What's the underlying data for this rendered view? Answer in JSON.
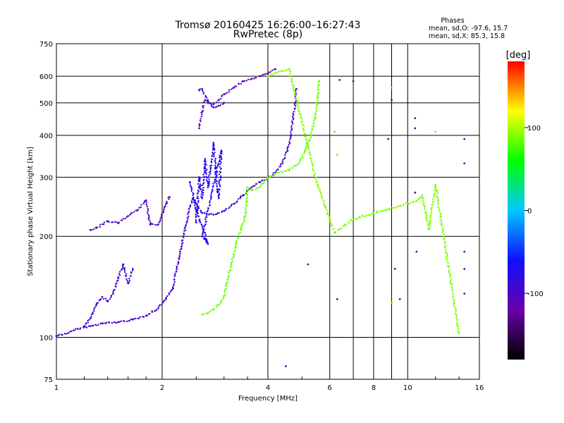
{
  "header": {
    "title_line1": "Tromsø 20160425 16:26:00–16:27:43",
    "title_line2": "RwPretec (8p)"
  },
  "phase_info": {
    "heading": "Phases",
    "line_o": "mean, sd,O: -97.6, 15.7",
    "line_x": "mean, sd,X:  85.3, 15.8"
  },
  "colorbar": {
    "title": "[deg]",
    "ticks": [
      {
        "value": 100,
        "label": "100"
      },
      {
        "value": 0,
        "label": "0"
      },
      {
        "value": -100,
        "label": "-100"
      }
    ],
    "range": [
      -180,
      180
    ],
    "colormap": [
      "#000000",
      "#6a00a8",
      "#1010ff",
      "#00c8ff",
      "#00ff00",
      "#ffff00",
      "#ff0000"
    ]
  },
  "chart_data": {
    "type": "scatter",
    "title": "Tromsø 20160425 16:26:00–16:27:43",
    "subtitle": "RwPretec (8p)",
    "xlabel": "Frequency [MHz]",
    "ylabel": "Stationary phase Virtual Height [km]",
    "xscale": "log",
    "yscale": "log",
    "xlim": [
      1,
      16
    ],
    "ylim": [
      75,
      750
    ],
    "xticks": [
      {
        "value": 1,
        "label": "1"
      },
      {
        "value": 2,
        "label": "2"
      },
      {
        "value": 4,
        "label": "4"
      },
      {
        "value": 6,
        "label": "6"
      },
      {
        "value": 8,
        "label": "8"
      },
      {
        "value": 10,
        "label": "10"
      },
      {
        "value": 16,
        "label": "16"
      }
    ],
    "xgrid": [
      2,
      4,
      6,
      7,
      8,
      9,
      10
    ],
    "yticks": [
      {
        "value": 75,
        "label": "75"
      },
      {
        "value": 100,
        "label": "100"
      },
      {
        "value": 200,
        "label": "200"
      },
      {
        "value": 300,
        "label": "300"
      },
      {
        "value": 400,
        "label": "400"
      },
      {
        "value": 500,
        "label": "500"
      },
      {
        "value": 600,
        "label": "600"
      },
      {
        "value": 750,
        "label": "750"
      }
    ],
    "ygrid": [
      100,
      200,
      300,
      400,
      500,
      600
    ],
    "grid": true,
    "color_by": "phase [deg]",
    "series": [
      {
        "phase": -95,
        "points": [
          [
            1.0,
            101
          ],
          [
            1.08,
            103
          ],
          [
            1.15,
            106
          ],
          [
            1.25,
            108
          ],
          [
            1.35,
            110
          ],
          [
            1.5,
            111
          ],
          [
            1.65,
            113
          ],
          [
            1.8,
            116
          ],
          [
            1.95,
            122
          ],
          [
            2.05,
            130
          ],
          [
            2.15,
            140
          ],
          [
            2.2,
            160
          ],
          [
            2.25,
            180
          ],
          [
            2.3,
            200
          ],
          [
            2.35,
            220
          ],
          [
            2.4,
            245
          ],
          [
            2.45,
            260
          ],
          [
            2.5,
            250
          ],
          [
            2.6,
            235
          ],
          [
            2.8,
            232
          ],
          [
            3.0,
            238
          ],
          [
            3.2,
            250
          ],
          [
            3.4,
            265
          ],
          [
            3.6,
            280
          ],
          [
            3.8,
            290
          ],
          [
            4.0,
            298
          ],
          [
            4.2,
            310
          ],
          [
            4.4,
            330
          ],
          [
            4.55,
            360
          ],
          [
            4.65,
            400
          ],
          [
            4.72,
            450
          ],
          [
            4.78,
            500
          ],
          [
            4.82,
            550
          ]
        ]
      },
      {
        "phase": -110,
        "points": [
          [
            2.55,
            420
          ],
          [
            2.6,
            470
          ],
          [
            2.65,
            510
          ],
          [
            2.7,
            500
          ],
          [
            2.8,
            495
          ],
          [
            2.9,
            510
          ],
          [
            3.0,
            530
          ],
          [
            3.2,
            555
          ],
          [
            3.4,
            580
          ],
          [
            3.6,
            590
          ],
          [
            3.8,
            600
          ],
          [
            4.0,
            610
          ],
          [
            4.2,
            630
          ]
        ]
      },
      {
        "phase": -85,
        "points": [
          [
            2.55,
            545
          ],
          [
            2.6,
            550
          ],
          [
            2.7,
            505
          ],
          [
            2.8,
            485
          ],
          [
            2.9,
            490
          ],
          [
            3.0,
            500
          ]
        ]
      },
      {
        "phase": -100,
        "points": [
          [
            1.25,
            209
          ],
          [
            1.3,
            212
          ],
          [
            1.4,
            222
          ],
          [
            1.5,
            219
          ],
          [
            1.6,
            230
          ],
          [
            1.7,
            239
          ],
          [
            1.8,
            256
          ],
          [
            1.85,
            217
          ],
          [
            1.95,
            217
          ],
          [
            2.05,
            250
          ],
          [
            2.1,
            262
          ]
        ]
      },
      {
        "phase": -90,
        "points": [
          [
            1.2,
            108
          ],
          [
            1.25,
            114
          ],
          [
            1.3,
            125
          ],
          [
            1.35,
            132
          ],
          [
            1.4,
            128
          ],
          [
            1.45,
            135
          ],
          [
            1.5,
            150
          ],
          [
            1.55,
            165
          ],
          [
            1.6,
            145
          ],
          [
            1.65,
            160
          ]
        ]
      },
      {
        "phase": -75,
        "points": [
          [
            2.5,
            220
          ],
          [
            2.55,
            300
          ],
          [
            2.6,
            260
          ],
          [
            2.65,
            340
          ],
          [
            2.7,
            280
          ],
          [
            2.75,
            320
          ],
          [
            2.8,
            380
          ],
          [
            2.85,
            300
          ],
          [
            2.9,
            260
          ],
          [
            2.95,
            360
          ],
          [
            2.6,
            200
          ],
          [
            2.7,
            190
          ],
          [
            2.5,
            240
          ],
          [
            2.4,
            290
          ]
        ]
      },
      {
        "phase": 85,
        "points": [
          [
            2.6,
            117
          ],
          [
            2.7,
            118
          ],
          [
            2.8,
            121
          ],
          [
            2.9,
            125
          ],
          [
            3.0,
            133
          ],
          [
            3.05,
            145
          ],
          [
            3.15,
            165
          ],
          [
            3.25,
            190
          ],
          [
            3.35,
            210
          ],
          [
            3.45,
            230
          ],
          [
            3.5,
            280
          ],
          [
            3.6,
            275
          ],
          [
            3.8,
            280
          ],
          [
            4.0,
            300
          ],
          [
            4.3,
            310
          ],
          [
            4.6,
            315
          ],
          [
            4.9,
            330
          ],
          [
            5.1,
            360
          ],
          [
            5.3,
            400
          ],
          [
            5.45,
            450
          ],
          [
            5.55,
            520
          ],
          [
            5.6,
            580
          ]
        ]
      },
      {
        "phase": 90,
        "points": [
          [
            4.0,
            600
          ],
          [
            4.3,
            620
          ],
          [
            4.6,
            630
          ],
          [
            5.2,
            370
          ],
          [
            5.5,
            290
          ],
          [
            6.2,
            205
          ],
          [
            7.0,
            225
          ],
          [
            10.6,
            255
          ],
          [
            11.0,
            265
          ],
          [
            11.5,
            210
          ],
          [
            12.0,
            285
          ],
          [
            14.0,
            103
          ]
        ]
      },
      {
        "phase": 140,
        "points": [
          [
            6.2,
            410
          ],
          [
            6.3,
            350
          ],
          [
            9.0,
            555
          ],
          [
            12.0,
            410
          ],
          [
            9.0,
            127
          ]
        ]
      },
      {
        "phase": -110,
        "points": [
          [
            4.5,
            82
          ],
          [
            5.2,
            165
          ],
          [
            6.3,
            130
          ],
          [
            8.8,
            390
          ],
          [
            9.0,
            510
          ],
          [
            9.2,
            160
          ],
          [
            9.5,
            130
          ],
          [
            10.5,
            450
          ],
          [
            10.5,
            420
          ],
          [
            10.5,
            270
          ],
          [
            10.6,
            180
          ],
          [
            14.5,
            390
          ],
          [
            14.5,
            330
          ],
          [
            14.5,
            180
          ],
          [
            14.5,
            160
          ],
          [
            14.5,
            135
          ],
          [
            7.0,
            580
          ],
          [
            6.4,
            585
          ]
        ]
      }
    ]
  }
}
